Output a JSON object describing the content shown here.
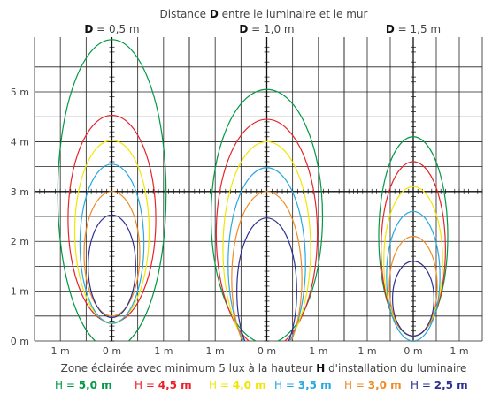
{
  "chart_data": {
    "type": "line",
    "title": {
      "before": "Distance ",
      "bold": "D",
      "after": " entre le luminaire et le mur"
    },
    "caption": {
      "before": "Zone éclairée avec minimum 5 lux à la hauteur ",
      "bold": "H",
      "after": " d'installation du luminaire"
    },
    "y_tick_labels": [
      "0 m",
      "1 m",
      "2 m",
      "3 m",
      "4 m",
      "5 m"
    ],
    "x_tick_labels": [
      "1 m",
      "0 m",
      "1 m"
    ],
    "ylim": [
      0,
      6.1
    ],
    "xlim": [
      -1.5,
      1.5
    ],
    "grid": true,
    "legend_position": "bottom",
    "series_colors": [
      "#009944",
      "#e8232a",
      "#f2e600",
      "#29a8e0",
      "#f08a24",
      "#2e3192"
    ],
    "legend": [
      {
        "text": "H = 5,0 m",
        "color": "#009944"
      },
      {
        "text": "H = 4,5 m",
        "color": "#e8232a"
      },
      {
        "text": "H = 4,0 m",
        "color": "#f2e600"
      },
      {
        "text": "H = 3,5 m",
        "color": "#29a8e0"
      },
      {
        "text": "H = 3,0 m",
        "color": "#f08a24"
      },
      {
        "text": "H = 2,5 m",
        "color": "#2e3192"
      }
    ],
    "panels": [
      {
        "label": {
          "bold": "D",
          "rest": " = 0,5 m"
        },
        "zones": [
          {
            "series": "H = 5,0 m",
            "cx": 0.0,
            "cy": 2.95,
            "rx": 1.05,
            "ry": 3.1
          },
          {
            "series": "H = 4,5 m",
            "cx": 0.0,
            "cy": 2.45,
            "rx": 0.85,
            "ry": 2.08
          },
          {
            "series": "H = 4,0 m",
            "cx": 0.0,
            "cy": 2.2,
            "rx": 0.72,
            "ry": 1.83
          },
          {
            "series": "H = 3,5 m",
            "cx": 0.0,
            "cy": 1.95,
            "rx": 0.62,
            "ry": 1.6
          },
          {
            "series": "H = 3,0 m",
            "cx": 0.0,
            "cy": 1.75,
            "rx": 0.54,
            "ry": 1.25
          },
          {
            "series": "H = 2,5 m",
            "cx": 0.0,
            "cy": 1.5,
            "rx": 0.46,
            "ry": 1.03
          }
        ]
      },
      {
        "label": {
          "bold": "D",
          "rest": " = 1,0 m"
        },
        "zones": [
          {
            "series": "H = 5,0 m",
            "cx": 0.0,
            "cy": 2.5,
            "rx": 1.08,
            "ry": 2.55
          },
          {
            "series": "H = 4,5 m",
            "cx": 0.0,
            "cy": 2.15,
            "rx": 0.98,
            "ry": 2.3
          },
          {
            "series": "H = 4,0 m",
            "cx": 0.0,
            "cy": 1.85,
            "rx": 0.85,
            "ry": 2.15
          },
          {
            "series": "H = 3,5 m",
            "cx": 0.0,
            "cy": 1.55,
            "rx": 0.75,
            "ry": 1.93
          },
          {
            "series": "H = 3,0 m",
            "cx": 0.0,
            "cy": 1.25,
            "rx": 0.68,
            "ry": 1.75
          },
          {
            "series": "H = 2,5 m",
            "cx": 0.0,
            "cy": 1.0,
            "rx": 0.58,
            "ry": 1.47
          }
        ]
      },
      {
        "label": {
          "bold": "D",
          "rest": " = 1,5 m"
        },
        "zones": [
          {
            "series": "H = 5,0 m",
            "cx": 0.0,
            "cy": 2.1,
            "rx": 0.75,
            "ry": 2.0
          },
          {
            "series": "H = 4,5 m",
            "cx": 0.0,
            "cy": 1.85,
            "rx": 0.7,
            "ry": 1.75
          },
          {
            "series": "H = 4,0 m",
            "cx": 0.0,
            "cy": 1.6,
            "rx": 0.64,
            "ry": 1.5
          },
          {
            "series": "H = 3,5 m",
            "cx": 0.0,
            "cy": 1.3,
            "rx": 0.58,
            "ry": 1.3
          },
          {
            "series": "H = 3,0 m",
            "cx": 0.0,
            "cy": 1.1,
            "rx": 0.52,
            "ry": 1.0
          },
          {
            "series": "H = 2,5 m",
            "cx": 0.0,
            "cy": 0.85,
            "rx": 0.45,
            "ry": 0.75
          }
        ]
      }
    ]
  }
}
